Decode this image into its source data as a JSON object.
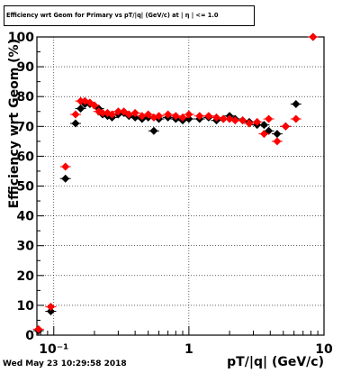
{
  "footer_timestamp": "Wed May 23 10:29:58 2018",
  "colors": {
    "series1": "#000000",
    "series2": "#ff0000",
    "grid": "#000000",
    "axis": "#000000"
  },
  "chart_data": {
    "type": "scatter",
    "title": "Efficiency wrt Geom for Primary vs pT/|q| (GeV/c) at | η | <= 1.0",
    "xlabel": "pT/|q| (GeV/c)",
    "ylabel": "Efficiency wrt Geom (%)",
    "xscale": "log",
    "xlim": [
      0.075,
      10
    ],
    "ylim": [
      0,
      100
    ],
    "grid": true,
    "legend": "none",
    "x_ticks": [
      "10⁻¹",
      "1",
      "10"
    ],
    "y_ticks": [
      "0",
      "10",
      "20",
      "30",
      "40",
      "50",
      "60",
      "70",
      "80",
      "90",
      "100"
    ],
    "series": [
      {
        "color": "#000000",
        "marker": "diamond",
        "points": [
          {
            "x": 0.077,
            "y": 1.5
          },
          {
            "x": 0.095,
            "y": 8
          },
          {
            "x": 0.122,
            "y": 52.5
          },
          {
            "x": 0.145,
            "y": 71
          },
          {
            "x": 0.158,
            "y": 76
          },
          {
            "x": 0.17,
            "y": 77.5
          },
          {
            "x": 0.185,
            "y": 77.5
          },
          {
            "x": 0.2,
            "y": 77
          },
          {
            "x": 0.215,
            "y": 76
          },
          {
            "x": 0.23,
            "y": 74
          },
          {
            "x": 0.25,
            "y": 73.5
          },
          {
            "x": 0.27,
            "y": 73
          },
          {
            "x": 0.3,
            "y": 74
          },
          {
            "x": 0.33,
            "y": 74.5
          },
          {
            "x": 0.36,
            "y": 73.5
          },
          {
            "x": 0.4,
            "y": 73
          },
          {
            "x": 0.45,
            "y": 72.5
          },
          {
            "x": 0.5,
            "y": 73
          },
          {
            "x": 0.55,
            "y": 68.5
          },
          {
            "x": 0.6,
            "y": 72.5
          },
          {
            "x": 0.7,
            "y": 73
          },
          {
            "x": 0.8,
            "y": 72.5
          },
          {
            "x": 0.9,
            "y": 72
          },
          {
            "x": 1.0,
            "y": 72.5
          },
          {
            "x": 1.2,
            "y": 72.5
          },
          {
            "x": 1.4,
            "y": 73
          },
          {
            "x": 1.6,
            "y": 72
          },
          {
            "x": 1.8,
            "y": 72.5
          },
          {
            "x": 2.0,
            "y": 73.5
          },
          {
            "x": 2.2,
            "y": 72.5
          },
          {
            "x": 2.5,
            "y": 72
          },
          {
            "x": 2.8,
            "y": 71.5
          },
          {
            "x": 3.2,
            "y": 70.5
          },
          {
            "x": 3.6,
            "y": 70.5
          },
          {
            "x": 3.9,
            "y": 68.5
          },
          {
            "x": 4.5,
            "y": 67.5
          },
          {
            "x": 5.2,
            "y": 70
          },
          {
            "x": 6.2,
            "y": 77.5
          },
          {
            "x": 8.3,
            "y": 100
          }
        ]
      },
      {
        "color": "#ff0000",
        "marker": "diamond",
        "points": [
          {
            "x": 0.077,
            "y": 2
          },
          {
            "x": 0.095,
            "y": 9.5
          },
          {
            "x": 0.122,
            "y": 56.5
          },
          {
            "x": 0.145,
            "y": 74
          },
          {
            "x": 0.158,
            "y": 78.5
          },
          {
            "x": 0.17,
            "y": 78.5
          },
          {
            "x": 0.185,
            "y": 78
          },
          {
            "x": 0.2,
            "y": 77
          },
          {
            "x": 0.215,
            "y": 75
          },
          {
            "x": 0.23,
            "y": 74.5
          },
          {
            "x": 0.25,
            "y": 74.5
          },
          {
            "x": 0.27,
            "y": 74
          },
          {
            "x": 0.3,
            "y": 75
          },
          {
            "x": 0.33,
            "y": 75
          },
          {
            "x": 0.36,
            "y": 74
          },
          {
            "x": 0.4,
            "y": 74.5
          },
          {
            "x": 0.45,
            "y": 73.5
          },
          {
            "x": 0.5,
            "y": 74
          },
          {
            "x": 0.55,
            "y": 73
          },
          {
            "x": 0.6,
            "y": 73.5
          },
          {
            "x": 0.7,
            "y": 74
          },
          {
            "x": 0.8,
            "y": 73.5
          },
          {
            "x": 0.9,
            "y": 73
          },
          {
            "x": 1.0,
            "y": 74
          },
          {
            "x": 1.2,
            "y": 73.5
          },
          {
            "x": 1.4,
            "y": 73.5
          },
          {
            "x": 1.6,
            "y": 73
          },
          {
            "x": 1.8,
            "y": 72.5
          },
          {
            "x": 2.0,
            "y": 72.5
          },
          {
            "x": 2.2,
            "y": 72
          },
          {
            "x": 2.5,
            "y": 72
          },
          {
            "x": 2.8,
            "y": 71
          },
          {
            "x": 3.2,
            "y": 71.5
          },
          {
            "x": 3.6,
            "y": 67.5
          },
          {
            "x": 3.9,
            "y": 72.5
          },
          {
            "x": 4.5,
            "y": 65
          },
          {
            "x": 5.2,
            "y": 70
          },
          {
            "x": 6.2,
            "y": 72.5
          },
          {
            "x": 8.3,
            "y": 100
          }
        ]
      }
    ]
  }
}
